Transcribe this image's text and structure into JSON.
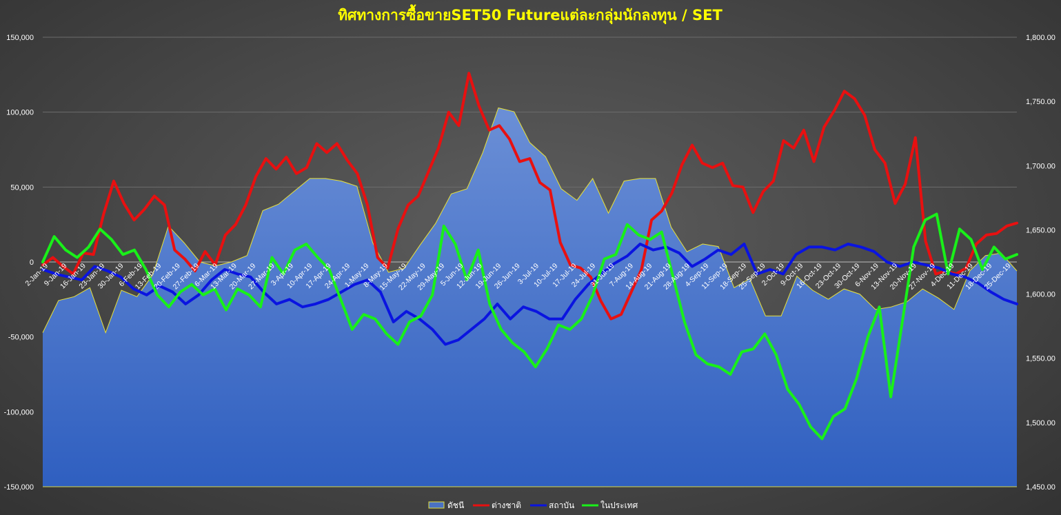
{
  "chart_data": {
    "type": "line",
    "title": "ทิศทางการซื้อขายSET50 Futureแต่ละกลุ่มนักลงทุน / SET",
    "xlabel": "",
    "ylabel": "",
    "y_left_lim": [
      -150000,
      150000
    ],
    "y_left_ticks": [
      "-150,000",
      "-100,000",
      "-50,000",
      "0",
      "50,000",
      "100,000",
      "150,000"
    ],
    "y_right_lim": [
      1450,
      1800
    ],
    "y_right_ticks": [
      "1,450.00",
      "1,500.00",
      "1,550.00",
      "1,600.00",
      "1,650.00",
      "1,700.00",
      "1,750.00",
      "1,800.00"
    ],
    "x_ticks": [
      "2-Jan-19",
      "9-Jan-19",
      "16-Jan-19",
      "23-Jan-19",
      "30-Jan-19",
      "6-Feb-19",
      "13-Feb-19",
      "20-Feb-19",
      "27-Feb-19",
      "6-Mar-19",
      "13-Mar-19",
      "20-Mar-19",
      "27-Mar-19",
      "3-Apr-19",
      "10-Apr-19",
      "17-Apr-19",
      "24-Apr-19",
      "1-May-19",
      "8-May-19",
      "15-May-19",
      "22-May-19",
      "29-May-19",
      "5-Jun-19",
      "12-Jun-19",
      "19-Jun-19",
      "26-Jun-19",
      "3-Jul-19",
      "10-Jul-19",
      "17-Jul-19",
      "24-Jul-19",
      "31-Jul-19",
      "7-Aug-19",
      "14-Aug-19",
      "21-Aug-19",
      "28-Aug-19",
      "4-Sep-19",
      "11-Sep-19",
      "18-Sep-19",
      "25-Sep-19",
      "2-Oct-19",
      "9-Oct-19",
      "16-Oct-19",
      "23-Oct-19",
      "30-Oct-19",
      "6-Nov-19",
      "13-Nov-19",
      "20-Nov-19",
      "27-Nov-19",
      "4-Dec-19",
      "11-Dec-19",
      "18-Dec-19",
      "25-Dec-19"
    ],
    "grid": true,
    "legend_position": "bottom",
    "series": [
      {
        "name": "ดัชนี",
        "axis": "right",
        "kind": "area",
        "color": "#4a72c4",
        "values": [
          1570,
          1595,
          1598,
          1605,
          1570,
          1603,
          1598,
          1615,
          1653,
          1640,
          1625,
          1622,
          1625,
          1630,
          1665,
          1670,
          1680,
          1690,
          1690,
          1688,
          1684,
          1640,
          1617,
          1620,
          1638,
          1655,
          1678,
          1682,
          1710,
          1745,
          1742,
          1718,
          1707,
          1682,
          1673,
          1690,
          1663,
          1688,
          1690,
          1690,
          1652,
          1633,
          1639,
          1637,
          1605,
          1612,
          1583,
          1583,
          1614,
          1603,
          1596,
          1604,
          1600,
          1588,
          1590,
          1594,
          1604,
          1597,
          1588,
          1618,
          1630,
          1632,
          1618
        ]
      },
      {
        "name": "ต่างชาติ",
        "axis": "left",
        "kind": "line",
        "color": "#e81010",
        "values": [
          -2000,
          3000,
          -3000,
          -8000,
          6000,
          5000,
          32000,
          54000,
          39000,
          28000,
          35000,
          44000,
          38000,
          8000,
          2000,
          -6000,
          7000,
          -2000,
          18000,
          25000,
          38000,
          57000,
          69000,
          62000,
          70000,
          59000,
          63000,
          79000,
          73000,
          79000,
          68000,
          59000,
          38000,
          3000,
          -4000,
          22000,
          38000,
          44000,
          60000,
          76000,
          100000,
          91000,
          126000,
          104000,
          88000,
          91000,
          82000,
          67000,
          69000,
          53000,
          48000,
          13000,
          -2000,
          -4000,
          -10000,
          -26000,
          -38000,
          -35000,
          -20000,
          -5000,
          28000,
          34000,
          46000,
          65000,
          78000,
          66000,
          63000,
          66000,
          51000,
          50000,
          33000,
          47000,
          54000,
          81000,
          76000,
          88000,
          67000,
          90000,
          101000,
          114000,
          109000,
          98000,
          75000,
          66000,
          39000,
          52000,
          83000,
          14000,
          -8000,
          -6000,
          -8000,
          -4000,
          12000,
          18000,
          19000,
          24000,
          26000
        ]
      },
      {
        "name": "สถาบัน",
        "axis": "left",
        "kind": "line",
        "color": "#0a14e0",
        "values": [
          -5000,
          -8000,
          -10000,
          -12000,
          -3000,
          -6000,
          -10000,
          -18000,
          -22000,
          -16000,
          -20000,
          -28000,
          -22000,
          -12000,
          -5000,
          -8000,
          -10000,
          -20000,
          -28000,
          -25000,
          -30000,
          -28000,
          -25000,
          -20000,
          -15000,
          -12000,
          -20000,
          -40000,
          -33000,
          -38000,
          -45000,
          -55000,
          -52000,
          -45000,
          -38000,
          -28000,
          -38000,
          -30000,
          -33000,
          -38000,
          -38000,
          -25000,
          -15000,
          -8000,
          -1000,
          4000,
          12000,
          8000,
          10000,
          6000,
          -3000,
          2000,
          8000,
          5000,
          12000,
          -8000,
          -5000,
          -8000,
          5000,
          10000,
          10000,
          8000,
          12000,
          10000,
          7000,
          0,
          -3000,
          0,
          -2000,
          -4000,
          -8000,
          -10000,
          -14000,
          -20000,
          -25000,
          -28000
        ]
      },
      {
        "name": "ในประเทศ",
        "axis": "left",
        "kind": "line",
        "color": "#19f019",
        "values": [
          0,
          17000,
          8000,
          3000,
          10000,
          22000,
          15000,
          5000,
          8000,
          -5000,
          -22000,
          -30000,
          -20000,
          -15000,
          -22000,
          -18000,
          -32000,
          -18000,
          -22000,
          -30000,
          3000,
          -8000,
          8000,
          12000,
          3000,
          -5000,
          -25000,
          -45000,
          -35000,
          -38000,
          -48000,
          -55000,
          -40000,
          -36000,
          -22000,
          24000,
          12000,
          -12000,
          8000,
          -28000,
          -45000,
          -54000,
          -60000,
          -70000,
          -58000,
          -42000,
          -45000,
          -38000,
          -22000,
          2000,
          5000,
          25000,
          18000,
          15000,
          20000,
          -10000,
          -40000,
          -62000,
          -68000,
          -70000,
          -75000,
          -60000,
          -58000,
          -48000,
          -62000,
          -85000,
          -95000,
          -110000,
          -118000,
          -103000,
          -98000,
          -78000,
          -50000,
          -30000,
          -90000,
          -40000,
          10000,
          28000,
          32000,
          -8000,
          22000,
          15000,
          -5000,
          10000,
          2000,
          5000
        ]
      }
    ]
  }
}
